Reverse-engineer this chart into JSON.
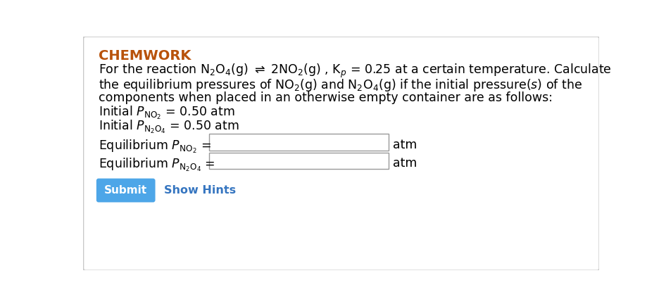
{
  "background_color": "#ffffff",
  "border_color": "#c8c8c8",
  "header_text": "CHEMWORK",
  "header_color": "#b8520a",
  "text_color": "#000000",
  "font_size_header": 14,
  "font_size_body": 12.5,
  "input_box_color": "#ffffff",
  "input_box_border": "#999999",
  "submit_bg": "#4da6e8",
  "submit_text_color": "#ffffff",
  "submit_text": "Submit",
  "hints_text": "Show Hints",
  "hints_color": "#3575c0",
  "atm_label": "atm"
}
